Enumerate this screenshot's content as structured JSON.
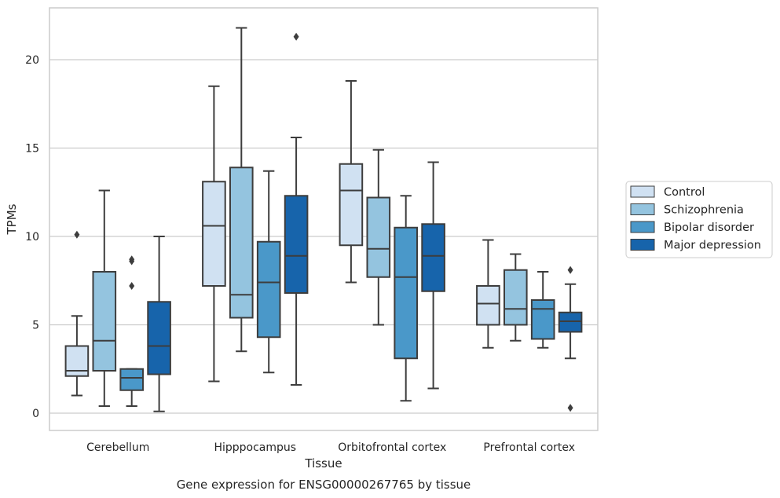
{
  "chart_data": {
    "type": "box",
    "caption": "Gene expression for ENSG00000267765 by tissue",
    "xlabel": "Tissue",
    "ylabel": "TPMs",
    "ylim": [
      -1,
      23
    ],
    "yticks": [
      0,
      5,
      10,
      15,
      20
    ],
    "grid": "horizontal",
    "legend_position": "right",
    "categories": [
      "Cerebellum",
      "Hipppocampus",
      "Orbitofrontal cortex",
      "Prefrontal cortex"
    ],
    "series": [
      {
        "name": "Control",
        "color": "#d0e1f2",
        "boxes": [
          {
            "whislo": 1.0,
            "q1": 2.1,
            "med": 2.4,
            "q3": 3.8,
            "whishi": 5.5,
            "fliers": [
              10.1
            ]
          },
          {
            "whislo": 1.8,
            "q1": 7.2,
            "med": 10.6,
            "q3": 13.1,
            "whishi": 18.5,
            "fliers": []
          },
          {
            "whislo": 7.4,
            "q1": 9.5,
            "med": 12.6,
            "q3": 14.1,
            "whishi": 18.8,
            "fliers": []
          },
          {
            "whislo": 3.7,
            "q1": 5.0,
            "med": 6.2,
            "q3": 7.2,
            "whishi": 9.8,
            "fliers": []
          }
        ]
      },
      {
        "name": "Schizophrenia",
        "color": "#94c4df",
        "boxes": [
          {
            "whislo": 0.4,
            "q1": 2.4,
            "med": 4.1,
            "q3": 8.0,
            "whishi": 12.6,
            "fliers": []
          },
          {
            "whislo": 3.5,
            "q1": 5.4,
            "med": 6.7,
            "q3": 13.9,
            "whishi": 21.8,
            "fliers": []
          },
          {
            "whislo": 5.0,
            "q1": 7.7,
            "med": 9.3,
            "q3": 12.2,
            "whishi": 14.9,
            "fliers": []
          },
          {
            "whislo": 4.1,
            "q1": 5.0,
            "med": 5.9,
            "q3": 8.1,
            "whishi": 9.0,
            "fliers": []
          }
        ]
      },
      {
        "name": "Bipolar disorder",
        "color": "#4a98c9",
        "boxes": [
          {
            "whislo": 0.4,
            "q1": 1.3,
            "med": 2.0,
            "q3": 2.5,
            "whishi": 2.5,
            "fliers": [
              7.2,
              8.6,
              8.7
            ]
          },
          {
            "whislo": 2.3,
            "q1": 4.3,
            "med": 7.4,
            "q3": 9.7,
            "whishi": 13.7,
            "fliers": []
          },
          {
            "whislo": 0.7,
            "q1": 3.1,
            "med": 7.7,
            "q3": 10.5,
            "whishi": 12.3,
            "fliers": []
          },
          {
            "whislo": 3.7,
            "q1": 4.2,
            "med": 5.9,
            "q3": 6.4,
            "whishi": 8.0,
            "fliers": []
          }
        ]
      },
      {
        "name": "Major depression",
        "color": "#1764ab",
        "boxes": [
          {
            "whislo": 0.1,
            "q1": 2.2,
            "med": 3.8,
            "q3": 6.3,
            "whishi": 10.0,
            "fliers": []
          },
          {
            "whislo": 1.6,
            "q1": 6.8,
            "med": 8.9,
            "q3": 12.3,
            "whishi": 15.6,
            "fliers": [
              21.3
            ]
          },
          {
            "whislo": 1.4,
            "q1": 6.9,
            "med": 8.9,
            "q3": 10.7,
            "whishi": 14.2,
            "fliers": []
          },
          {
            "whislo": 3.1,
            "q1": 4.6,
            "med": 5.2,
            "q3": 5.7,
            "whishi": 7.3,
            "fliers": [
              8.1,
              0.3
            ]
          }
        ]
      }
    ]
  }
}
